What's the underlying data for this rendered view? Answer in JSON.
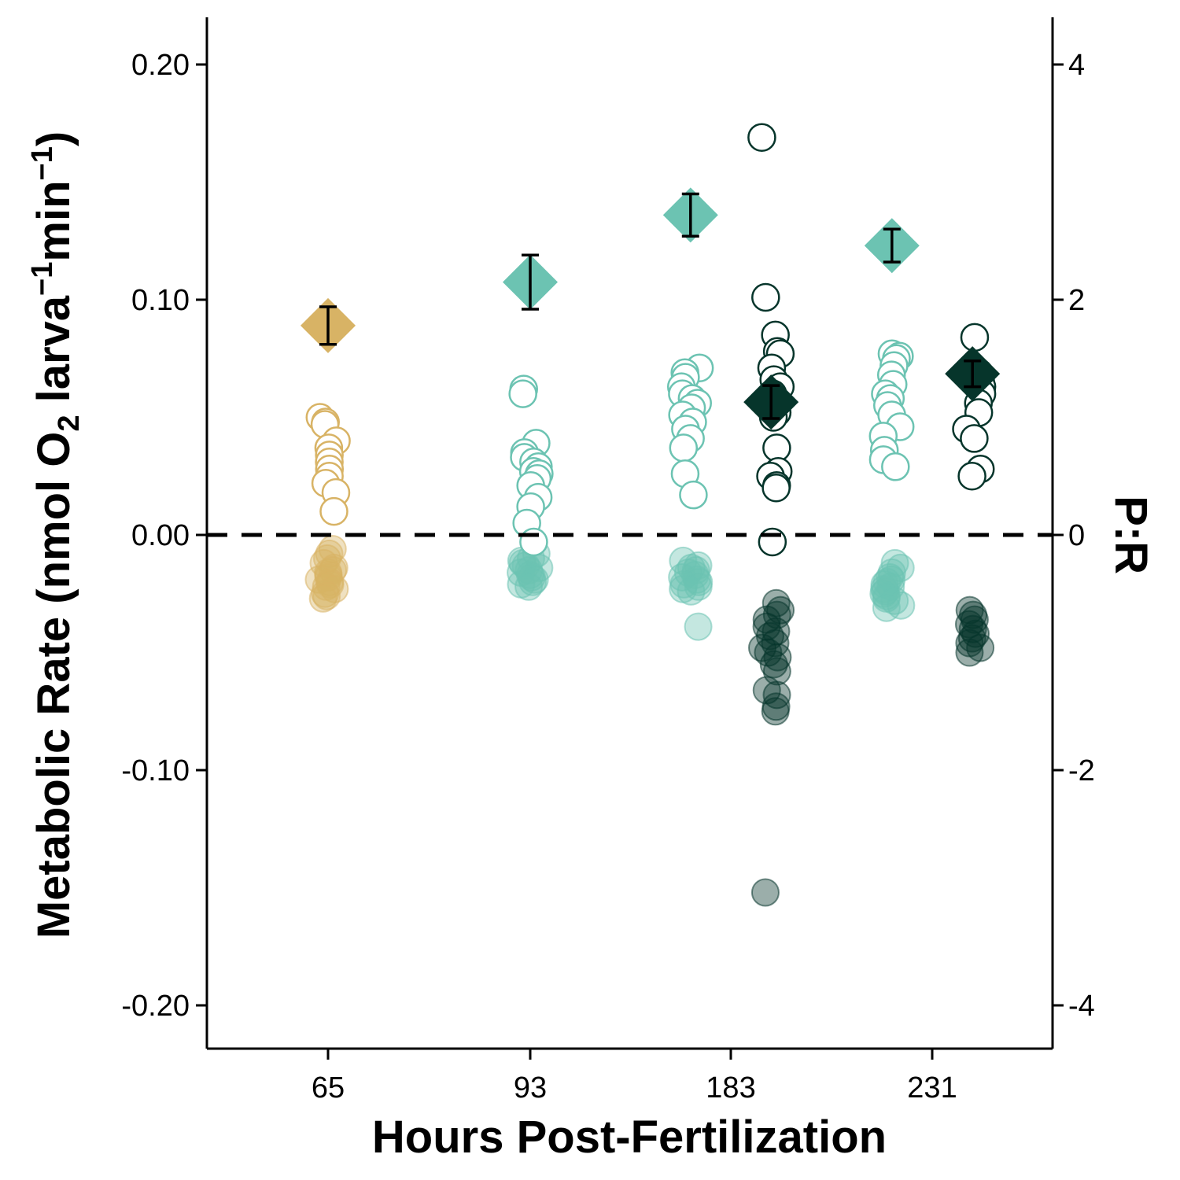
{
  "chart_data": {
    "type": "scatter",
    "xlabel": "Hours Post-Fertilization",
    "ylabel_parts": {
      "pre": "Metabolic Rate (nmol O",
      "sub": "2",
      "mid1": " larva",
      "sup1": "−1",
      "mid2": "min",
      "sup2": "−1",
      "post": ")"
    },
    "y2label": "P:R",
    "categories": [
      "65",
      "93",
      "183",
      "231"
    ],
    "ylim": [
      -0.22,
      0.22
    ],
    "yticks": [
      -0.2,
      -0.1,
      0.0,
      0.1,
      0.2
    ],
    "ytick_labels": [
      "-0.20",
      "-0.10",
      "0.00",
      "0.10",
      "0.20"
    ],
    "y2lim": [
      -4.4,
      4.4
    ],
    "y2ticks": [
      -4,
      -2,
      0,
      2,
      4
    ],
    "y2tick_labels": [
      "-4",
      "-2",
      "0",
      "2",
      "4"
    ],
    "reference_line": 0,
    "colors": {
      "tan": "#d8b365",
      "teal": "#6cc3b2",
      "dark": "#06352b"
    },
    "series": [
      {
        "category": "65",
        "offset": 0,
        "color": "tan",
        "photosynthesis": [
          0.05,
          0.048,
          0.047,
          0.04,
          0.037,
          0.034,
          0.031,
          0.028,
          0.025,
          0.022,
          0.018,
          0.01
        ],
        "respiration": [
          -0.006,
          -0.008,
          -0.01,
          -0.012,
          -0.014,
          -0.015,
          -0.016,
          -0.017,
          -0.018,
          -0.019,
          -0.02,
          -0.021,
          -0.022,
          -0.023,
          -0.025,
          -0.026,
          -0.027
        ],
        "pr_mean": 1.78,
        "pr_se": 0.16
      },
      {
        "category": "93",
        "offset": 0,
        "color": "teal",
        "photosynthesis": [
          0.062,
          0.06,
          0.039,
          0.035,
          0.033,
          0.031,
          0.029,
          0.027,
          0.026,
          0.024,
          0.021,
          0.016,
          0.012,
          0.005,
          -0.003
        ],
        "respiration": [
          -0.008,
          -0.01,
          -0.011,
          -0.012,
          -0.013,
          -0.014,
          -0.015,
          -0.016,
          -0.017,
          -0.018,
          -0.019,
          -0.02,
          -0.021,
          -0.022
        ],
        "pr_mean": 2.15,
        "pr_se": 0.23
      },
      {
        "category": "183",
        "offset": -0.4,
        "color": "teal",
        "photosynthesis": [
          0.071,
          0.069,
          0.067,
          0.063,
          0.06,
          0.058,
          0.056,
          0.054,
          0.051,
          0.048,
          0.045,
          0.041,
          0.037,
          0.026,
          0.017
        ],
        "respiration": [
          -0.011,
          -0.013,
          -0.014,
          -0.015,
          -0.016,
          -0.017,
          -0.018,
          -0.019,
          -0.02,
          -0.021,
          -0.022,
          -0.023,
          -0.024,
          -0.039
        ],
        "pr_mean": 2.72,
        "pr_se": 0.18
      },
      {
        "category": "183",
        "offset": 0.4,
        "color": "dark",
        "photosynthesis": [
          0.169,
          0.101,
          0.085,
          0.078,
          0.077,
          0.071,
          0.066,
          0.063,
          0.06,
          0.057,
          0.055,
          0.052,
          0.05,
          0.037,
          0.027,
          0.025,
          0.021,
          0.02,
          -0.003
        ],
        "respiration": [
          -0.029,
          -0.032,
          -0.034,
          -0.036,
          -0.039,
          -0.041,
          -0.043,
          -0.046,
          -0.048,
          -0.05,
          -0.052,
          -0.055,
          -0.058,
          -0.066,
          -0.068,
          -0.073,
          -0.075,
          -0.152
        ],
        "pr_mean": 1.13,
        "pr_se": 0.14
      },
      {
        "category": "231",
        "offset": -0.4,
        "color": "teal",
        "photosynthesis": [
          0.077,
          0.076,
          0.075,
          0.072,
          0.068,
          0.064,
          0.06,
          0.058,
          0.055,
          0.051,
          0.046,
          0.042,
          0.036,
          0.032,
          0.029
        ],
        "respiration": [
          -0.012,
          -0.014,
          -0.016,
          -0.018,
          -0.019,
          -0.02,
          -0.021,
          -0.022,
          -0.023,
          -0.024,
          -0.025,
          -0.026,
          -0.027,
          -0.028,
          -0.03,
          -0.031
        ],
        "pr_mean": 2.46,
        "pr_se": 0.14
      },
      {
        "category": "231",
        "offset": 0.4,
        "color": "dark",
        "photosynthesis": [
          0.084,
          0.069,
          0.065,
          0.063,
          0.06,
          0.056,
          0.052,
          0.045,
          0.041,
          0.028,
          0.025
        ],
        "respiration": [
          -0.032,
          -0.034,
          -0.036,
          -0.038,
          -0.04,
          -0.042,
          -0.044,
          -0.046,
          -0.048,
          -0.05
        ],
        "pr_mean": 1.37,
        "pr_se": 0.11
      }
    ]
  }
}
